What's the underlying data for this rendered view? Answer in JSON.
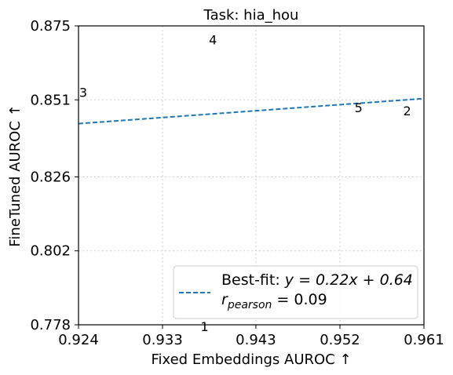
{
  "chart_data": {
    "type": "scatter",
    "title": "Task: hia_hou",
    "xlabel": "Fixed Embeddings AUROC ↑",
    "ylabel": "FineTuned AUROC ↑",
    "xlim": [
      0.924,
      0.961
    ],
    "ylim": [
      0.778,
      0.875
    ],
    "xticks": [
      "0.924",
      "0.933",
      "0.943",
      "0.952",
      "0.961"
    ],
    "yticks": [
      "0.778",
      "0.802",
      "0.826",
      "0.851",
      "0.875"
    ],
    "grid": true,
    "points": [
      {
        "label": "1",
        "x": 0.9375,
        "y": 0.7775
      },
      {
        "label": "2",
        "x": 0.9592,
        "y": 0.8475
      },
      {
        "label": "3",
        "x": 0.9245,
        "y": 0.8535
      },
      {
        "label": "4",
        "x": 0.9384,
        "y": 0.8705
      },
      {
        "label": "5",
        "x": 0.954,
        "y": 0.8485
      }
    ],
    "fit": {
      "slope": 0.22,
      "intercept": 0.64,
      "color": "#1f77b4"
    },
    "legend": {
      "placement": "lower-right",
      "fit_label_prefix": "Best-fit: ",
      "fit_equation": "y = 0.22x + 0.64",
      "r_prefix": "r",
      "r_subscript": "pearson",
      "r_value": " = 0.09"
    }
  }
}
